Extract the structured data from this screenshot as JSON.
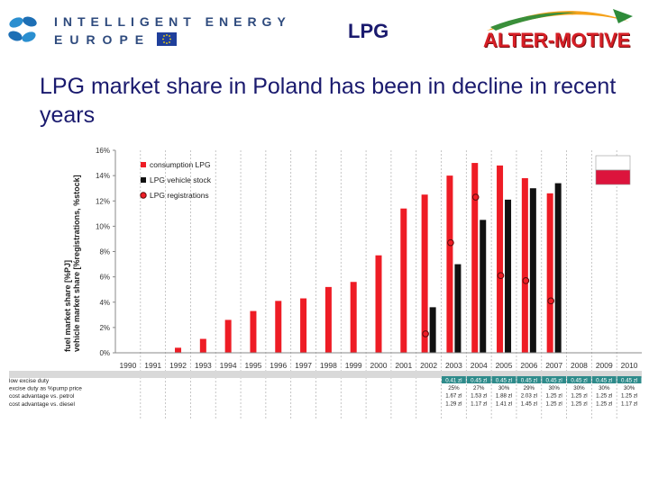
{
  "header": {
    "ie_line1": "INTELLIGENT ENERGY",
    "ie_line2": "EUROPE",
    "tag": "LPG",
    "alter_motive": "ALTER-MOTIVE"
  },
  "slide": {
    "title": "LPG market share in Poland has been in decline in recent years"
  },
  "colors": {
    "red": "#ee1c25",
    "black": "#111111",
    "title": "#1a1a6e",
    "ie_blue": "#2e4a7d",
    "teal": "#2e8b8b",
    "flag_red": "#dc143c"
  },
  "chart_data": {
    "type": "bar",
    "ylabel_line1": "fuel market share [%PJ]",
    "ylabel_line2": "vehicle market share [%registrations, %stock]",
    "ylim": [
      0,
      16
    ],
    "yticks": [
      "0%",
      "2%",
      "4%",
      "6%",
      "8%",
      "10%",
      "12%",
      "14%",
      "16%"
    ],
    "categories": [
      "1990",
      "1991",
      "1992",
      "1993",
      "1994",
      "1995",
      "1996",
      "1997",
      "1998",
      "1999",
      "2000",
      "2001",
      "2002",
      "2003",
      "2004",
      "2005",
      "2006",
      "2007",
      "2008",
      "2009",
      "2010"
    ],
    "series": [
      {
        "name": "consumption LPG",
        "color": "#ee1c25",
        "kind": "bar",
        "values": [
          null,
          null,
          0.4,
          1.1,
          2.6,
          3.3,
          4.1,
          4.3,
          5.2,
          5.6,
          7.7,
          11.4,
          12.5,
          14.0,
          15.0,
          14.8,
          13.8,
          12.6,
          null,
          null,
          null
        ]
      },
      {
        "name": "LPG vehicle stock",
        "color": "#111111",
        "kind": "bar",
        "values": [
          null,
          null,
          null,
          null,
          null,
          null,
          null,
          null,
          null,
          null,
          null,
          null,
          3.6,
          7.0,
          10.5,
          12.1,
          13.0,
          13.4,
          null,
          null,
          null
        ]
      },
      {
        "name": "LPG registrations",
        "color": "#ee1c25",
        "kind": "marker",
        "values": [
          null,
          null,
          null,
          null,
          null,
          null,
          null,
          null,
          null,
          null,
          null,
          null,
          1.5,
          8.7,
          12.3,
          6.1,
          5.7,
          4.1,
          null,
          null,
          null
        ]
      }
    ],
    "legend": [
      "consumption LPG",
      "LPG vehicle stock",
      "LPG registrations"
    ],
    "table": {
      "rows": [
        {
          "label": "low excise duty",
          "values": [
            "0.41 zl",
            "0.45 zl",
            "0.45 zl",
            "0.45 zl",
            "0.45 zl",
            "0.45 zl",
            "0.45 zl",
            "0.45 zl"
          ],
          "highlight": true
        },
        {
          "label": "excise duty as %pump price",
          "values": [
            "25%",
            "27%",
            "30%",
            "29%",
            "30%",
            "30%",
            "30%",
            "30%"
          ]
        },
        {
          "label": "cost advantage vs. petrol",
          "values": [
            "1.67 zl",
            "1.53 zl",
            "1.88 zl",
            "2.03 zl",
            "1.25 zl",
            "1.25 zl",
            "1.25 zl",
            "1.25 zl"
          ]
        },
        {
          "label": "cost advantage vs. diesel",
          "values": [
            "1.29 zl",
            "1.17 zl",
            "1.41 zl",
            "1.45 zl",
            "1.25 zl",
            "1.25 zl",
            "1.25 zl",
            "1.17 zl"
          ]
        }
      ]
    }
  }
}
